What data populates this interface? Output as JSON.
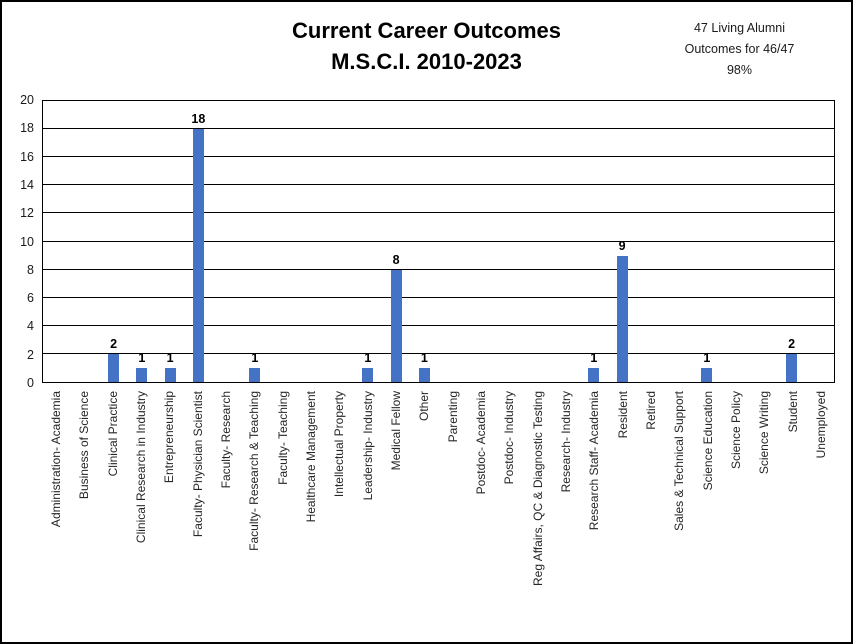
{
  "title": {
    "line1": "Current Career Outcomes",
    "line2": "M.S.C.I. 2010-2023"
  },
  "annotation": {
    "line1": "47 Living Alumni",
    "line2": "Outcomes for 46/47",
    "line3": "98%"
  },
  "chart_data": {
    "type": "bar",
    "title": "Current Career Outcomes M.S.C.I. 2010-2023",
    "categories": [
      "Administration- Academia",
      "Business of Science",
      "Clinical Practice",
      "Clinical Research in Industry",
      "Entrepreneurship",
      "Faculty- Physician Scientist",
      "Faculty- Research",
      "Faculty- Research & Teaching",
      "Faculty- Teaching",
      "Healthcare Management",
      "Intellectual Property",
      "Leadership- Industry",
      "Medical Fellow",
      "Other",
      "Parenting",
      "Postdoc- Academia",
      "Postdoc- Industry",
      "Reg Affairs, QC & Diagnostic Testing",
      "Research- Industry",
      "Research Staff- Academia",
      "Resident",
      "Retired",
      "Sales & Technical Support",
      "Science Education",
      "Science Policy",
      "Science Writing",
      "Student",
      "Unemployed"
    ],
    "values": [
      0,
      0,
      2,
      1,
      1,
      18,
      0,
      1,
      0,
      0,
      0,
      1,
      8,
      1,
      0,
      0,
      0,
      0,
      0,
      1,
      9,
      0,
      0,
      1,
      0,
      0,
      2,
      0
    ],
    "xlabel": "",
    "ylabel": "",
    "ylim": [
      0,
      20
    ],
    "ytick_step": 2,
    "grid": true,
    "legend": "none",
    "bar_color": "#4472C4",
    "data_labels": "shown above non-zero bars"
  }
}
